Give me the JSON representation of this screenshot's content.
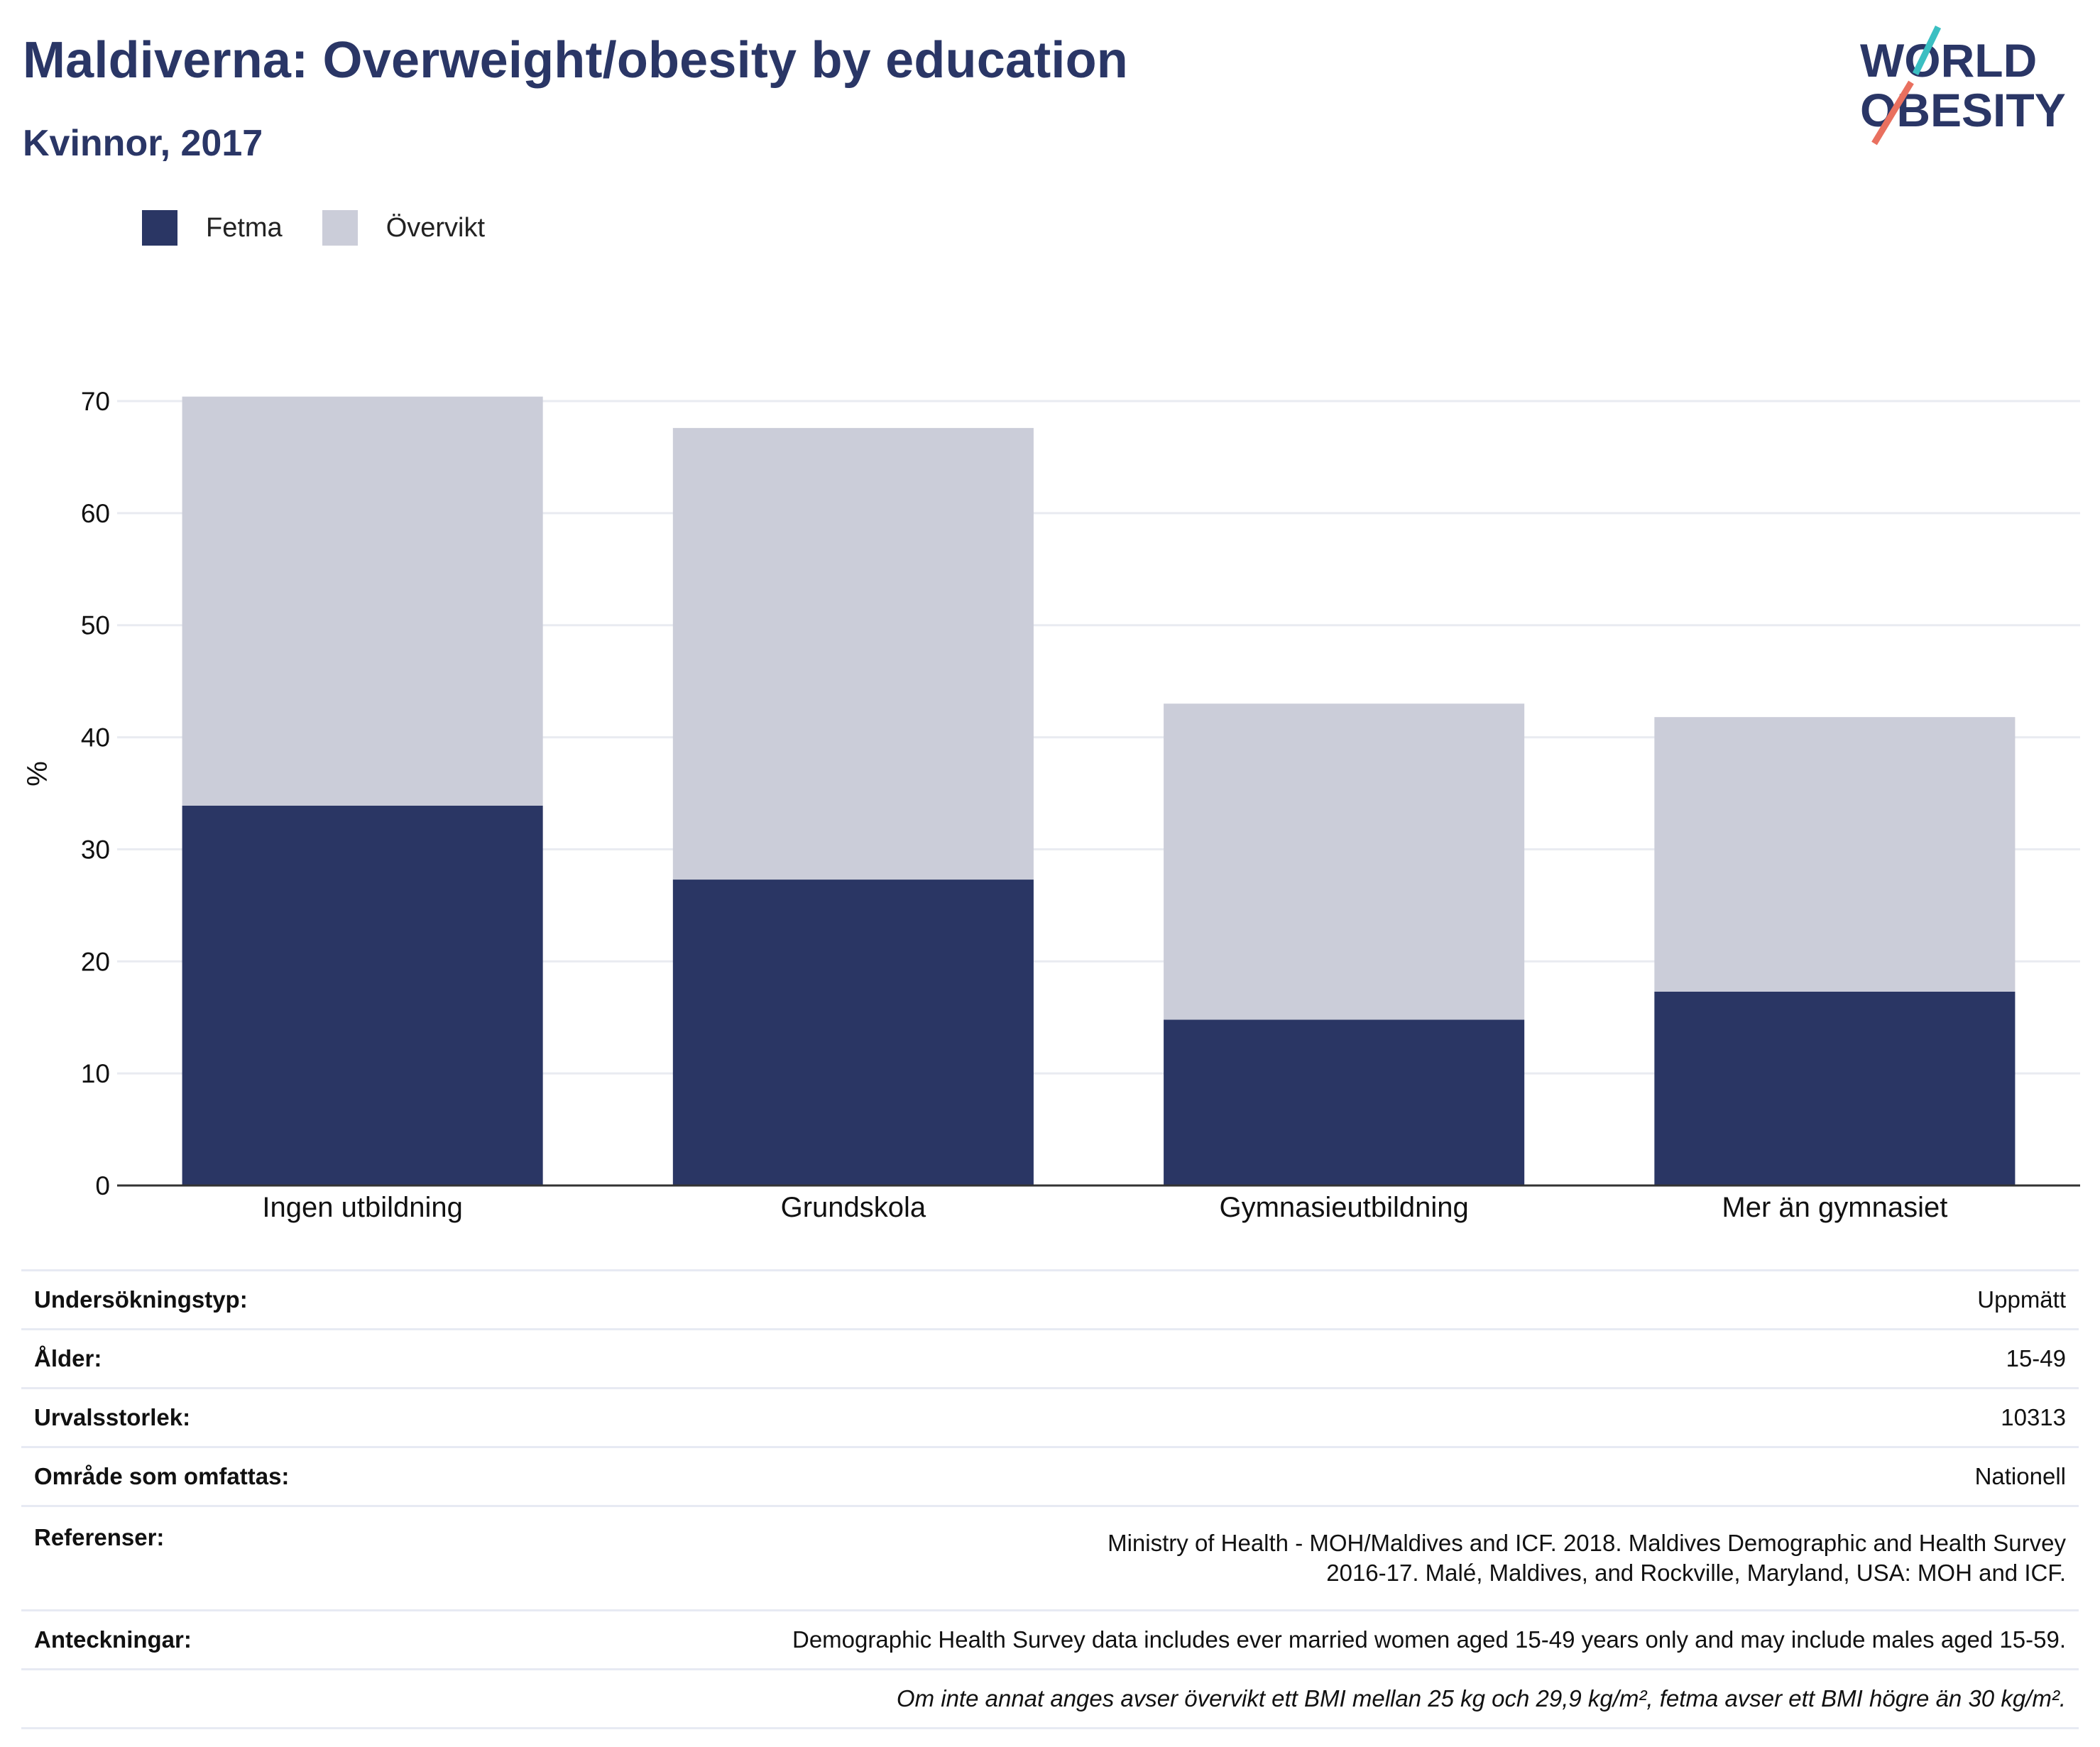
{
  "header": {
    "title": "Maldiverna: Overweight/obesity by education",
    "subtitle": "Kvinnor, 2017"
  },
  "logo": {
    "line1": "WORLD",
    "line2": "OBESITY"
  },
  "colors": {
    "fetma": "#2a3664",
    "overvikt": "#cbcdd9",
    "title": "#2a3666",
    "logo_teal": "#3bbfc2",
    "logo_coral": "#e9705f"
  },
  "chart_data": {
    "type": "bar",
    "stacked": true,
    "title": "Maldiverna: Overweight/obesity by education",
    "subtitle": "Kvinnor, 2017",
    "xlabel": "",
    "ylabel": "%",
    "ylim": [
      0,
      70
    ],
    "yticks": [
      0,
      10,
      20,
      30,
      40,
      50,
      60,
      70
    ],
    "grid": true,
    "legend_position": "top-left",
    "categories": [
      "Ingen utbildning",
      "Grundskola",
      "Gymnasieutbildning",
      "Mer än gymnasiet"
    ],
    "series": [
      {
        "name": "Fetma",
        "values": [
          33.9,
          27.3,
          14.8,
          17.3
        ]
      },
      {
        "name": "Övervikt",
        "values": [
          36.5,
          40.3,
          28.2,
          24.5
        ]
      }
    ]
  },
  "info": [
    {
      "label": "Undersökningstyp:",
      "value": "Uppmätt"
    },
    {
      "label": "Ålder:",
      "value": "15-49"
    },
    {
      "label": "Urvalsstorlek:",
      "value": "10313"
    },
    {
      "label": "Område som omfattas:",
      "value": "Nationell"
    },
    {
      "label": "Referenser:",
      "value": "Ministry of Health - MOH/Maldives and ICF. 2018. Maldives Demographic and Health Survey 2016-17. Malé, Maldives, and Rockville, Maryland, USA: MOH and ICF."
    },
    {
      "label": "Anteckningar:",
      "value": "Demographic Health Survey data includes ever married women aged 15-49 years only and may include males aged 15-59."
    }
  ],
  "footnote": "Om inte annat anges avser övervikt ett BMI mellan 25 kg och 29,9 kg/m², fetma avser ett BMI högre än 30 kg/m²."
}
